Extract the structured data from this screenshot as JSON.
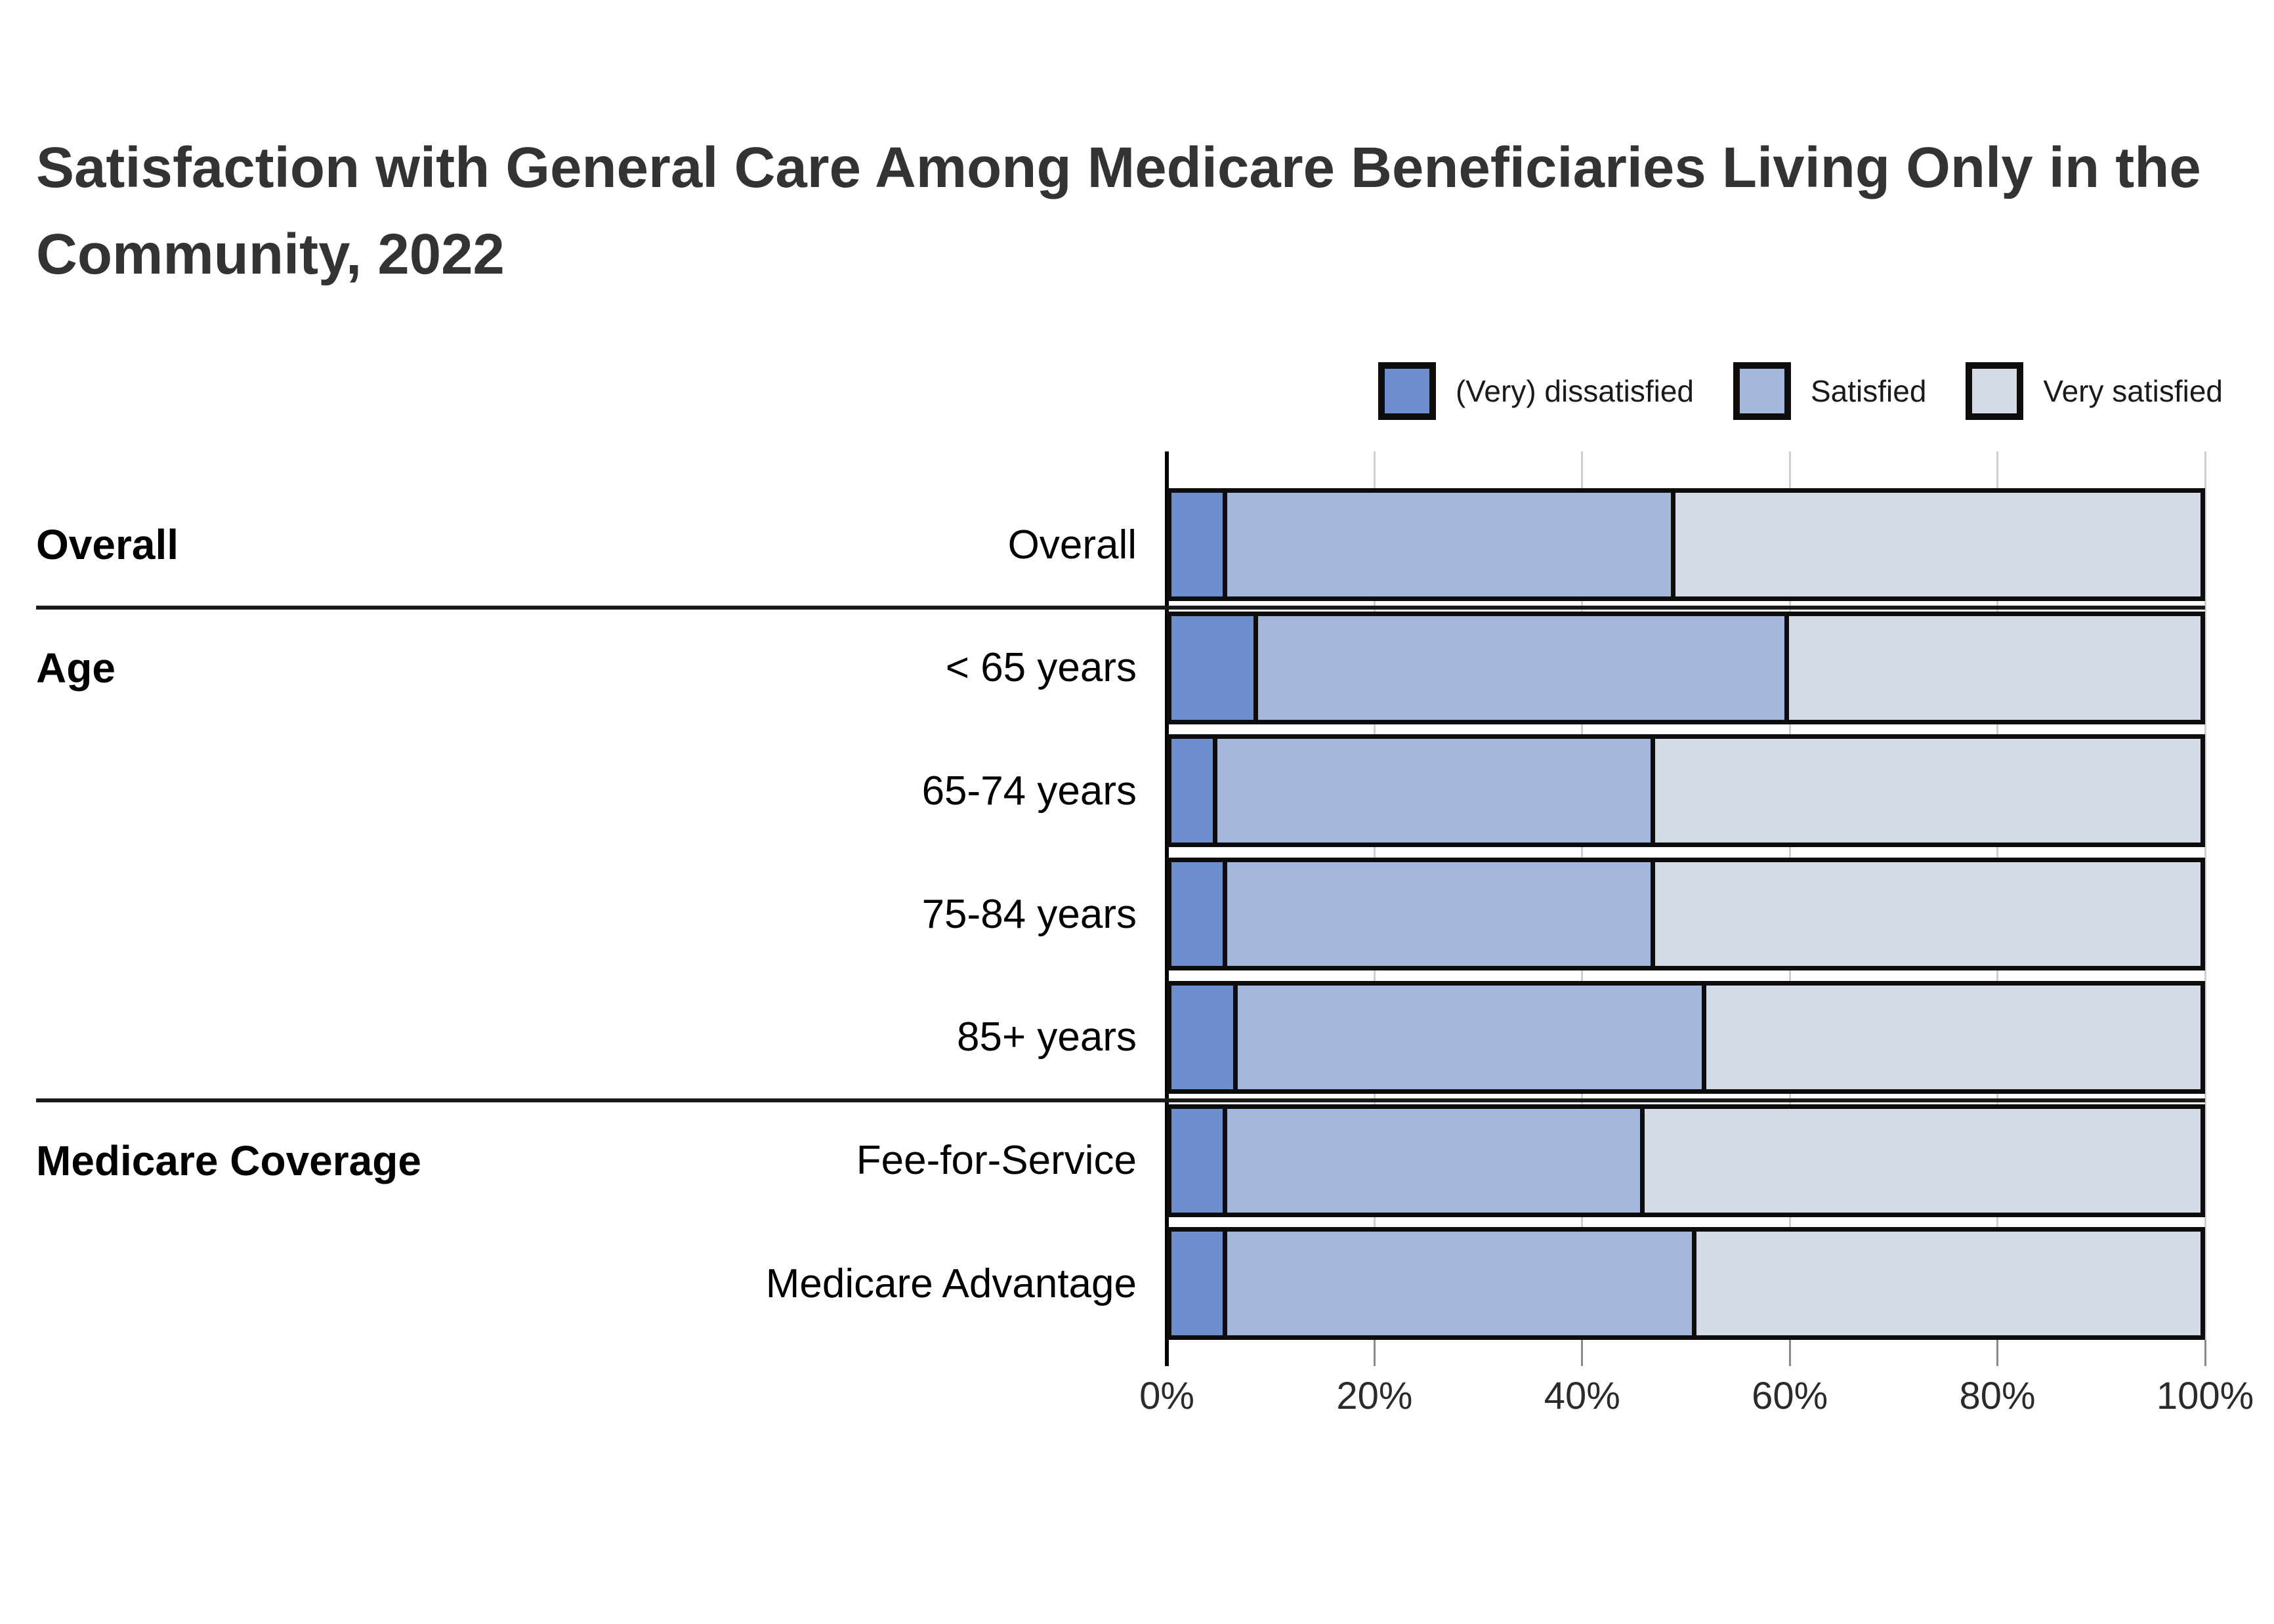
{
  "title": "Satisfaction with General Care Among Medicare Beneficiaries Living Only in the Community, 2022",
  "chart_data": {
    "type": "bar",
    "orientation": "horizontal",
    "stacked": true,
    "title": "Satisfaction with General Care Among Medicare Beneficiaries Living Only in the Community, 2022",
    "categories": [
      "Overall",
      "< 65 years",
      "65-74 years",
      "75-84 years",
      "85+ years",
      "Fee-for-Service",
      "Medicare Advantage"
    ],
    "series": [
      {
        "name": "(Very) dissatisfied",
        "color": "#6d8fce",
        "values": [
          5,
          8,
          4,
          5,
          6,
          5,
          5
        ]
      },
      {
        "name": "Satisfied",
        "color": "#a4b8dd",
        "values": [
          44,
          52,
          43,
          42,
          46,
          41,
          46
        ]
      },
      {
        "name": "Very satisfied",
        "color": "#d4dae6",
        "values": [
          51,
          40,
          53,
          53,
          48,
          54,
          49
        ]
      }
    ],
    "row_sections": [
      {
        "label": "Overall",
        "rows": [
          0
        ]
      },
      {
        "label": "Age",
        "rows": [
          1,
          2,
          3,
          4
        ]
      },
      {
        "label": "Medicare Coverage",
        "rows": [
          5,
          6
        ]
      }
    ],
    "xlim": [
      0,
      100
    ],
    "x_tick_values": [
      0,
      20,
      40,
      60,
      80,
      100
    ],
    "x_tick_labels": [
      "0%",
      "20%",
      "40%",
      "60%",
      "80%",
      "100%"
    ],
    "legend_position": "top-right",
    "grid": true,
    "bar_outline_color": "#0d0d0d",
    "gridline_color": "#cfcfcf",
    "section_divider_color": "#1a1a1a"
  }
}
